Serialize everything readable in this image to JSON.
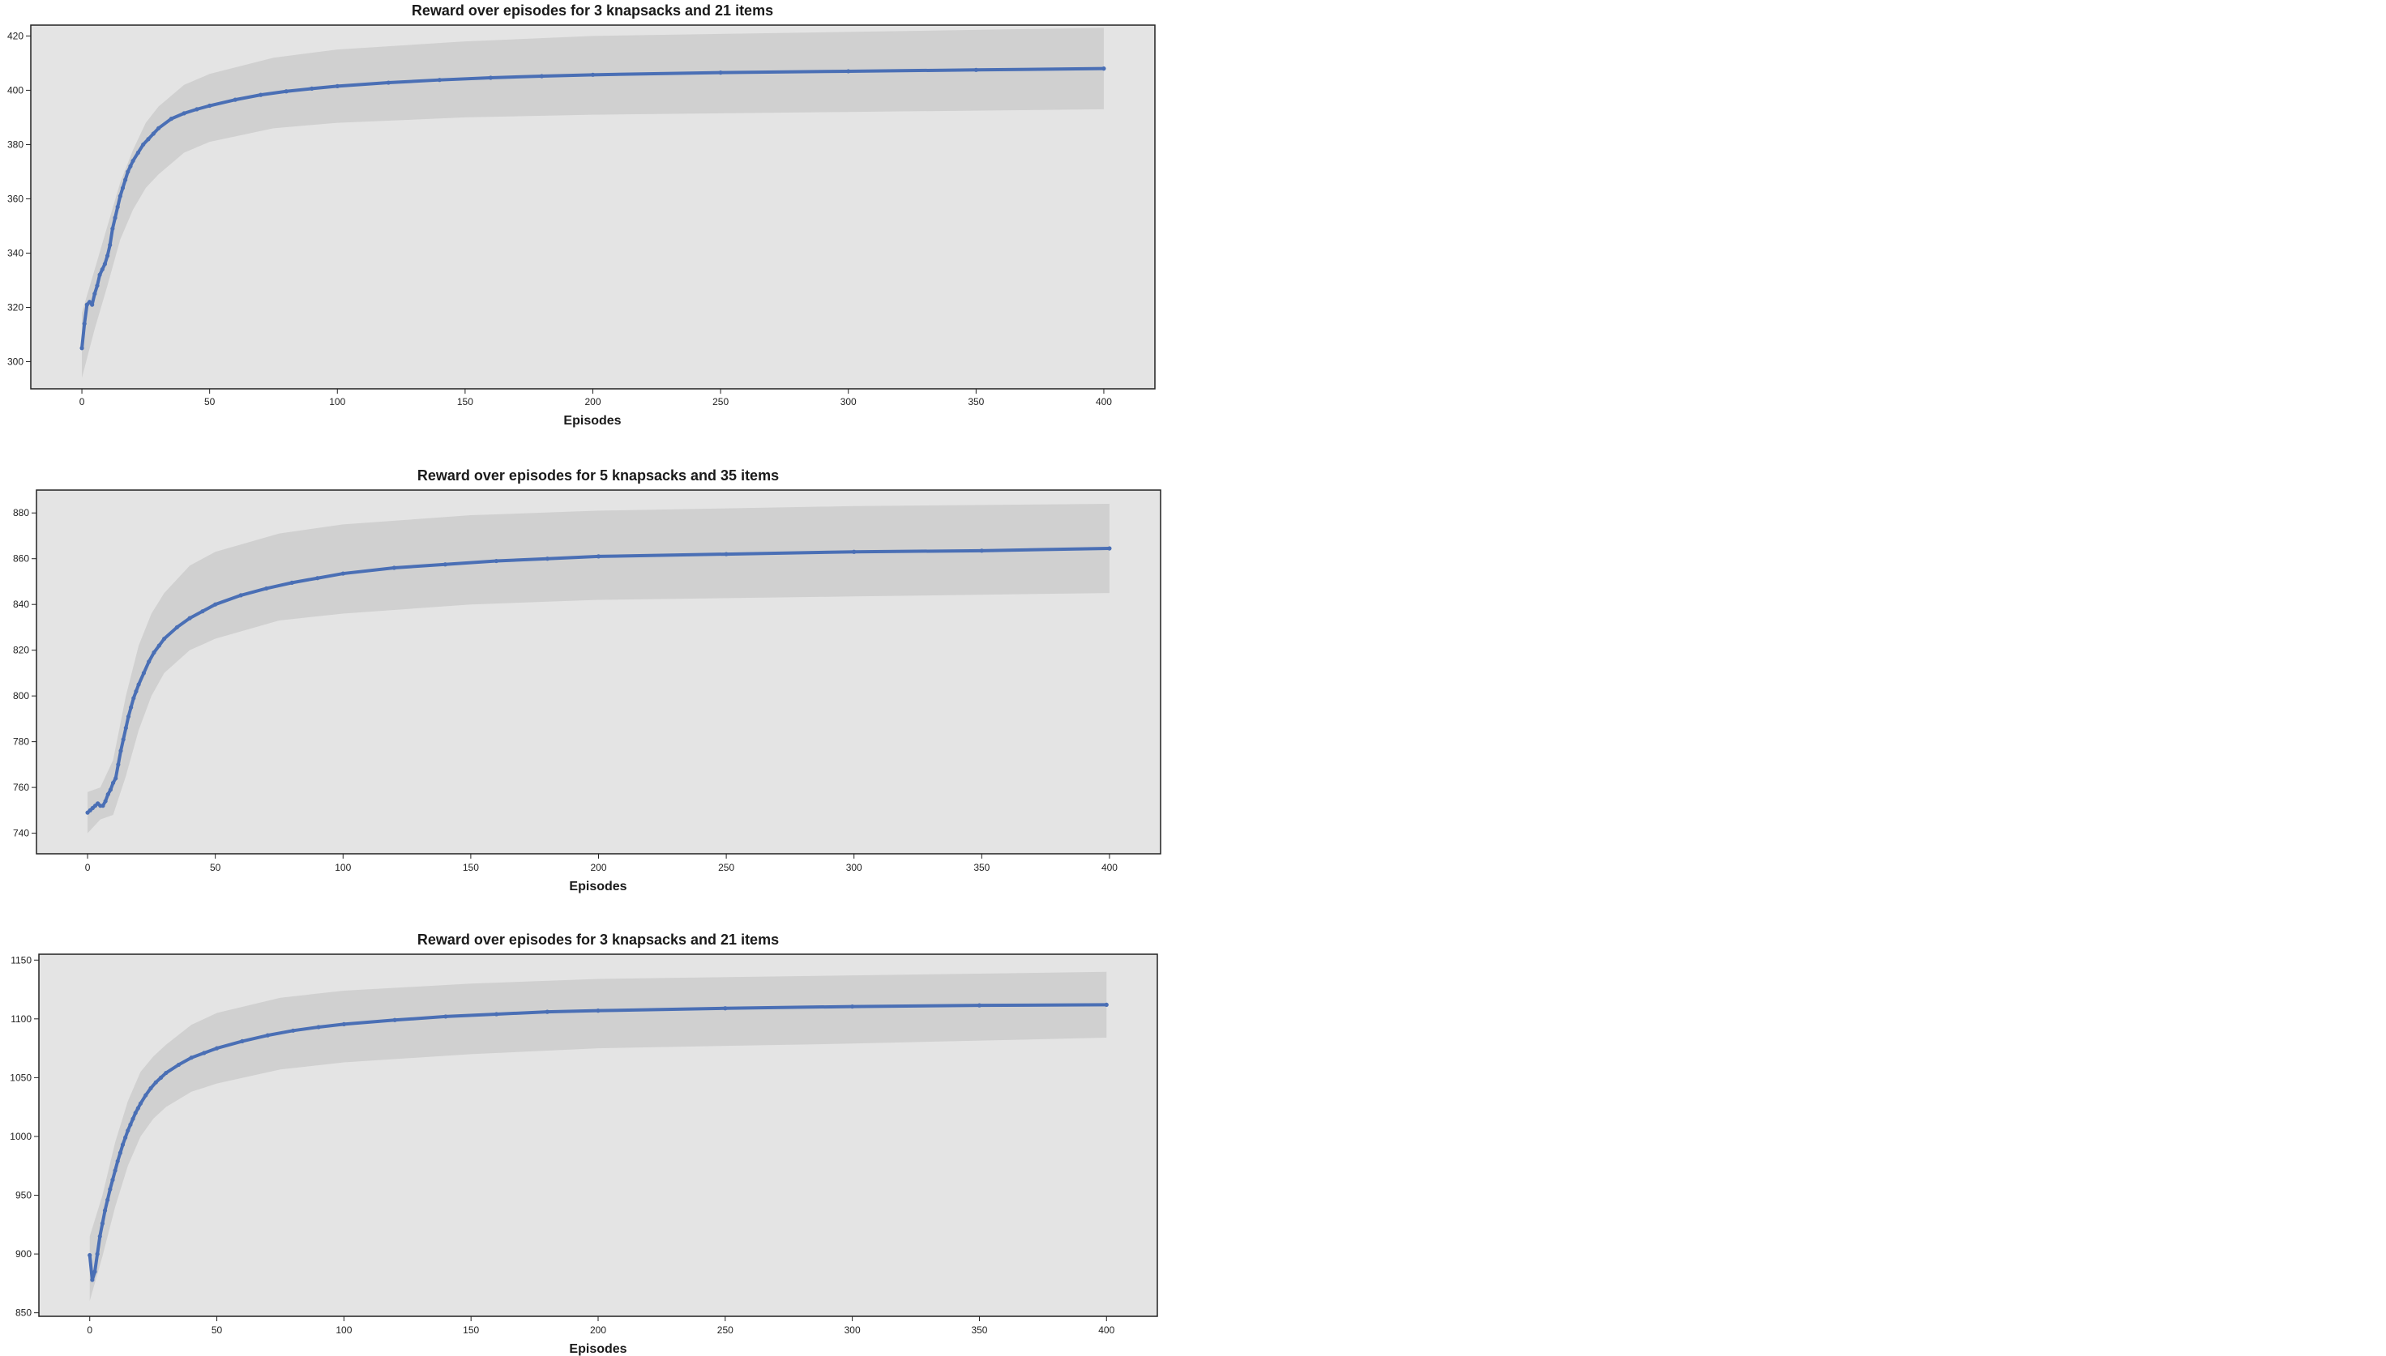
{
  "colors": {
    "background": "#ffffff",
    "plot_background": "#e4e4e4",
    "confidence_band": "#d0d0d0",
    "line": "#4a6fb5",
    "text": "#1a1a1a"
  },
  "chart_data": [
    {
      "type": "line",
      "title": "Reward over episodes for 3 knapsacks and 21 items",
      "xlabel": "Episodes",
      "ylabel": "",
      "xlim": [
        -20,
        420
      ],
      "ylim": [
        290,
        424
      ],
      "xticks": [
        0,
        50,
        100,
        150,
        200,
        250,
        300,
        350,
        400
      ],
      "yticks": [
        300,
        320,
        340,
        360,
        380,
        400,
        420
      ],
      "grid": false,
      "legend": "none",
      "series": [
        {
          "x": [
            0,
            1,
            2,
            3,
            4,
            5,
            6,
            7,
            8,
            9,
            10,
            11,
            12,
            13,
            14,
            15,
            16,
            17,
            18,
            19,
            20,
            22,
            24,
            26,
            28,
            30,
            35,
            40,
            45,
            50,
            60,
            70,
            80,
            90,
            100,
            120,
            140,
            160,
            180,
            200,
            250,
            300,
            350,
            400
          ],
          "y": [
            305,
            314,
            321,
            322,
            321,
            325,
            328,
            332,
            334,
            336,
            339,
            343,
            349,
            353,
            357,
            361,
            364,
            367,
            370,
            372,
            374,
            377,
            380,
            382,
            384,
            386,
            389.5,
            391.5,
            393,
            394.3,
            396.5,
            398.3,
            399.6,
            400.6,
            401.5,
            402.8,
            403.8,
            404.6,
            405.2,
            405.7,
            406.5,
            407,
            407.5,
            408
          ]
        }
      ],
      "band": {
        "x": [
          0,
          5,
          10,
          15,
          20,
          25,
          30,
          40,
          50,
          75,
          100,
          150,
          200,
          300,
          400
        ],
        "lower": [
          294,
          312,
          328,
          345,
          356,
          364,
          369,
          377,
          381,
          386,
          388,
          390,
          391,
          392,
          393
        ],
        "upper": [
          318,
          334,
          350,
          366,
          378,
          388,
          394,
          402,
          406,
          412,
          415,
          418,
          420,
          421.5,
          423
        ]
      }
    },
    {
      "type": "line",
      "title": "Reward over episodes for 5 knapsacks and 35 items",
      "xlabel": "Episodes",
      "ylabel": "",
      "xlim": [
        -20,
        420
      ],
      "ylim": [
        731,
        890
      ],
      "xticks": [
        0,
        50,
        100,
        150,
        200,
        250,
        300,
        350,
        400
      ],
      "yticks": [
        740,
        760,
        780,
        800,
        820,
        840,
        860,
        880
      ],
      "grid": false,
      "legend": "none",
      "series": [
        {
          "x": [
            0,
            1,
            2,
            3,
            4,
            5,
            6,
            7,
            8,
            9,
            10,
            11,
            12,
            13,
            14,
            15,
            16,
            17,
            18,
            19,
            20,
            22,
            24,
            26,
            28,
            30,
            35,
            40,
            45,
            50,
            60,
            70,
            80,
            90,
            100,
            120,
            140,
            160,
            180,
            200,
            250,
            300,
            350,
            400
          ],
          "y": [
            749,
            750,
            751,
            752,
            753,
            752,
            752,
            754,
            757,
            759,
            762,
            764,
            770,
            776,
            781,
            786,
            791,
            795,
            799,
            802,
            805,
            810,
            815,
            819,
            822,
            825,
            830,
            834,
            837,
            840,
            844,
            847,
            849.5,
            851.5,
            853.5,
            856,
            857.5,
            859,
            860,
            861,
            862,
            863,
            863.5,
            864.5
          ]
        }
      ],
      "band": {
        "x": [
          0,
          5,
          10,
          15,
          20,
          25,
          30,
          40,
          50,
          75,
          100,
          150,
          200,
          300,
          400
        ],
        "lower": [
          740,
          746,
          748,
          765,
          785,
          800,
          810,
          820,
          825,
          833,
          836,
          840,
          842,
          843.5,
          845
        ],
        "upper": [
          758,
          760,
          772,
          800,
          822,
          836,
          845,
          857,
          863,
          871,
          875,
          879,
          881,
          883,
          884
        ]
      }
    },
    {
      "type": "line",
      "title": "Reward over episodes for 3 knapsacks and 21 items",
      "xlabel": "Episodes",
      "ylabel": "",
      "xlim": [
        -20,
        420
      ],
      "ylim": [
        847,
        1155
      ],
      "xticks": [
        0,
        50,
        100,
        150,
        200,
        250,
        300,
        350,
        400
      ],
      "yticks": [
        850,
        900,
        950,
        1000,
        1050,
        1100,
        1150
      ],
      "grid": false,
      "legend": "none",
      "series": [
        {
          "x": [
            0,
            1,
            2,
            3,
            4,
            5,
            6,
            7,
            8,
            9,
            10,
            11,
            12,
            13,
            14,
            15,
            16,
            17,
            18,
            19,
            20,
            22,
            24,
            26,
            28,
            30,
            35,
            40,
            45,
            50,
            60,
            70,
            80,
            90,
            100,
            120,
            140,
            160,
            180,
            200,
            250,
            300,
            350,
            400
          ],
          "y": [
            899,
            878,
            885,
            900,
            915,
            926,
            937,
            946,
            955,
            963,
            971,
            979,
            986,
            993,
            999,
            1005,
            1010,
            1015,
            1020,
            1024,
            1028,
            1035,
            1041,
            1046,
            1050,
            1054,
            1061,
            1067,
            1071,
            1075,
            1081,
            1086,
            1090,
            1093,
            1095.5,
            1099,
            1102,
            1104,
            1106,
            1107,
            1109,
            1110.5,
            1111.5,
            1112
          ]
        }
      ],
      "band": {
        "x": [
          0,
          5,
          10,
          15,
          20,
          25,
          30,
          40,
          50,
          75,
          100,
          150,
          200,
          300,
          400
        ],
        "lower": [
          860,
          898,
          940,
          975,
          1000,
          1015,
          1025,
          1038,
          1045,
          1057,
          1063,
          1070,
          1075,
          1079,
          1084
        ],
        "upper": [
          915,
          950,
          995,
          1030,
          1055,
          1068,
          1078,
          1095,
          1105,
          1118,
          1124,
          1130,
          1134,
          1137,
          1140
        ]
      }
    }
  ]
}
